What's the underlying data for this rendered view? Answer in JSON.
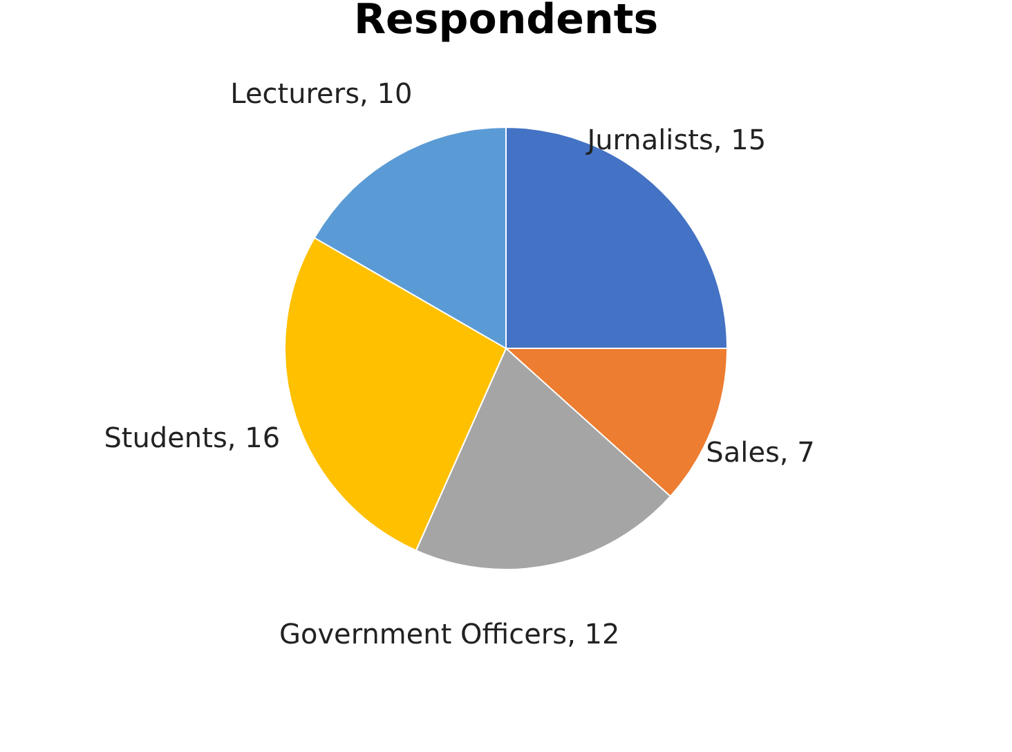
{
  "chart_data": {
    "type": "pie",
    "title": "Respondents",
    "categories": [
      "Jurnalists",
      "Sales",
      "Government Officers",
      "Students",
      "Lecturers"
    ],
    "values": [
      15,
      7,
      12,
      16,
      10
    ],
    "value_labels": [
      ", 15",
      ", 7",
      ", 12",
      ", 16",
      ", 10"
    ],
    "colors": [
      "#4472c4",
      "#ed7d31",
      "#a5a5a5",
      "#ffc000",
      "#5b9bd5"
    ]
  }
}
